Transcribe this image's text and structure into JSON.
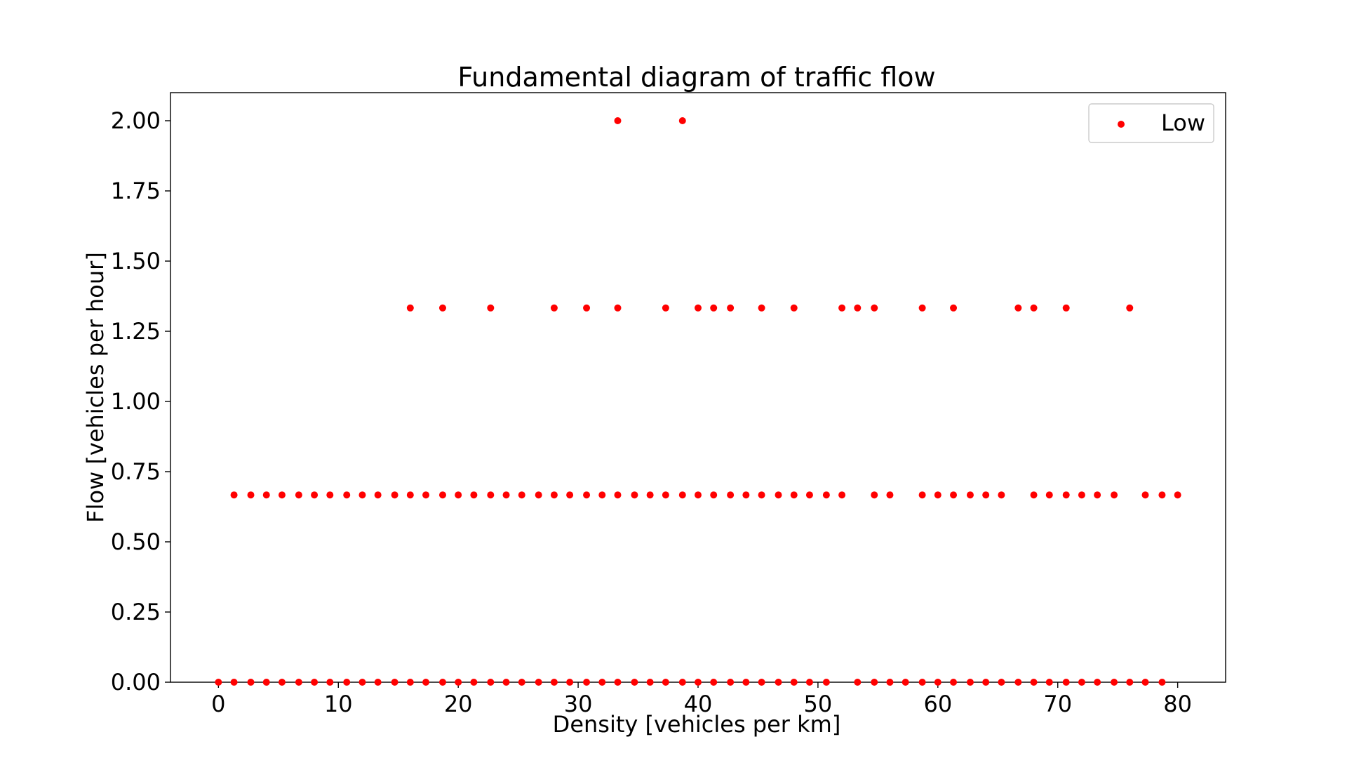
{
  "chart_data": {
    "type": "scatter",
    "title": "Fundamental diagram of traffic flow",
    "xlabel": "Density [vehicles per km]",
    "ylabel": "Flow [vehicles per hour]",
    "xlim": [
      -4,
      84
    ],
    "ylim": [
      0,
      2.1
    ],
    "xticks": [
      0,
      10,
      20,
      30,
      40,
      50,
      60,
      70,
      80
    ],
    "yticks": [
      0.0,
      0.25,
      0.5,
      0.75,
      1.0,
      1.25,
      1.5,
      1.75,
      2.0
    ],
    "xtick_labels": [
      "0",
      "10",
      "20",
      "30",
      "40",
      "50",
      "60",
      "70",
      "80"
    ],
    "ytick_labels": [
      "0.00",
      "0.25",
      "0.50",
      "0.75",
      "1.00",
      "1.25",
      "1.50",
      "1.75",
      "2.00"
    ],
    "grid": false,
    "legend_position": "top-right",
    "series": [
      {
        "name": "Low",
        "color": "#ff0000",
        "points": [
          {
            "x": 0,
            "y": 0
          },
          {
            "x": 1.3,
            "y": 0
          },
          {
            "x": 2.7,
            "y": 0
          },
          {
            "x": 4.0,
            "y": 0
          },
          {
            "x": 5.3,
            "y": 0
          },
          {
            "x": 6.7,
            "y": 0
          },
          {
            "x": 8.0,
            "y": 0
          },
          {
            "x": 9.3,
            "y": 0
          },
          {
            "x": 10.7,
            "y": 0
          },
          {
            "x": 12.0,
            "y": 0
          },
          {
            "x": 13.3,
            "y": 0
          },
          {
            "x": 14.7,
            "y": 0
          },
          {
            "x": 16.0,
            "y": 0
          },
          {
            "x": 17.3,
            "y": 0
          },
          {
            "x": 18.7,
            "y": 0
          },
          {
            "x": 20.0,
            "y": 0
          },
          {
            "x": 21.3,
            "y": 0
          },
          {
            "x": 22.7,
            "y": 0
          },
          {
            "x": 24.0,
            "y": 0
          },
          {
            "x": 25.3,
            "y": 0
          },
          {
            "x": 26.7,
            "y": 0
          },
          {
            "x": 28.0,
            "y": 0
          },
          {
            "x": 29.3,
            "y": 0
          },
          {
            "x": 30.7,
            "y": 0
          },
          {
            "x": 32.0,
            "y": 0
          },
          {
            "x": 33.3,
            "y": 0
          },
          {
            "x": 34.7,
            "y": 0
          },
          {
            "x": 36.0,
            "y": 0
          },
          {
            "x": 37.3,
            "y": 0
          },
          {
            "x": 38.7,
            "y": 0
          },
          {
            "x": 40.0,
            "y": 0
          },
          {
            "x": 41.3,
            "y": 0
          },
          {
            "x": 42.7,
            "y": 0
          },
          {
            "x": 44.0,
            "y": 0
          },
          {
            "x": 45.3,
            "y": 0
          },
          {
            "x": 46.7,
            "y": 0
          },
          {
            "x": 48.0,
            "y": 0
          },
          {
            "x": 49.3,
            "y": 0
          },
          {
            "x": 50.7,
            "y": 0
          },
          {
            "x": 53.3,
            "y": 0
          },
          {
            "x": 54.7,
            "y": 0
          },
          {
            "x": 56.0,
            "y": 0
          },
          {
            "x": 57.3,
            "y": 0
          },
          {
            "x": 58.7,
            "y": 0
          },
          {
            "x": 60.0,
            "y": 0
          },
          {
            "x": 61.3,
            "y": 0
          },
          {
            "x": 62.7,
            "y": 0
          },
          {
            "x": 64.0,
            "y": 0
          },
          {
            "x": 65.3,
            "y": 0
          },
          {
            "x": 66.7,
            "y": 0
          },
          {
            "x": 68.0,
            "y": 0
          },
          {
            "x": 69.3,
            "y": 0
          },
          {
            "x": 70.7,
            "y": 0
          },
          {
            "x": 72.0,
            "y": 0
          },
          {
            "x": 73.3,
            "y": 0
          },
          {
            "x": 74.7,
            "y": 0
          },
          {
            "x": 76.0,
            "y": 0
          },
          {
            "x": 77.3,
            "y": 0
          },
          {
            "x": 78.7,
            "y": 0
          },
          {
            "x": 1.3,
            "y": 0.667
          },
          {
            "x": 2.7,
            "y": 0.667
          },
          {
            "x": 4.0,
            "y": 0.667
          },
          {
            "x": 5.3,
            "y": 0.667
          },
          {
            "x": 6.7,
            "y": 0.667
          },
          {
            "x": 8.0,
            "y": 0.667
          },
          {
            "x": 9.3,
            "y": 0.667
          },
          {
            "x": 10.7,
            "y": 0.667
          },
          {
            "x": 12.0,
            "y": 0.667
          },
          {
            "x": 13.3,
            "y": 0.667
          },
          {
            "x": 14.7,
            "y": 0.667
          },
          {
            "x": 16.0,
            "y": 0.667
          },
          {
            "x": 17.3,
            "y": 0.667
          },
          {
            "x": 18.7,
            "y": 0.667
          },
          {
            "x": 20.0,
            "y": 0.667
          },
          {
            "x": 21.3,
            "y": 0.667
          },
          {
            "x": 22.7,
            "y": 0.667
          },
          {
            "x": 24.0,
            "y": 0.667
          },
          {
            "x": 25.3,
            "y": 0.667
          },
          {
            "x": 26.7,
            "y": 0.667
          },
          {
            "x": 28.0,
            "y": 0.667
          },
          {
            "x": 29.3,
            "y": 0.667
          },
          {
            "x": 30.7,
            "y": 0.667
          },
          {
            "x": 32.0,
            "y": 0.667
          },
          {
            "x": 33.3,
            "y": 0.667
          },
          {
            "x": 34.7,
            "y": 0.667
          },
          {
            "x": 36.0,
            "y": 0.667
          },
          {
            "x": 37.3,
            "y": 0.667
          },
          {
            "x": 38.7,
            "y": 0.667
          },
          {
            "x": 40.0,
            "y": 0.667
          },
          {
            "x": 41.3,
            "y": 0.667
          },
          {
            "x": 42.7,
            "y": 0.667
          },
          {
            "x": 44.0,
            "y": 0.667
          },
          {
            "x": 45.3,
            "y": 0.667
          },
          {
            "x": 46.7,
            "y": 0.667
          },
          {
            "x": 48.0,
            "y": 0.667
          },
          {
            "x": 49.3,
            "y": 0.667
          },
          {
            "x": 50.7,
            "y": 0.667
          },
          {
            "x": 52.0,
            "y": 0.667
          },
          {
            "x": 54.7,
            "y": 0.667
          },
          {
            "x": 56.0,
            "y": 0.667
          },
          {
            "x": 58.7,
            "y": 0.667
          },
          {
            "x": 60.0,
            "y": 0.667
          },
          {
            "x": 61.3,
            "y": 0.667
          },
          {
            "x": 62.7,
            "y": 0.667
          },
          {
            "x": 64.0,
            "y": 0.667
          },
          {
            "x": 65.3,
            "y": 0.667
          },
          {
            "x": 68.0,
            "y": 0.667
          },
          {
            "x": 69.3,
            "y": 0.667
          },
          {
            "x": 70.7,
            "y": 0.667
          },
          {
            "x": 72.0,
            "y": 0.667
          },
          {
            "x": 73.3,
            "y": 0.667
          },
          {
            "x": 74.7,
            "y": 0.667
          },
          {
            "x": 77.3,
            "y": 0.667
          },
          {
            "x": 78.7,
            "y": 0.667
          },
          {
            "x": 80.0,
            "y": 0.667
          },
          {
            "x": 16.0,
            "y": 1.333
          },
          {
            "x": 18.7,
            "y": 1.333
          },
          {
            "x": 22.7,
            "y": 1.333
          },
          {
            "x": 28.0,
            "y": 1.333
          },
          {
            "x": 30.7,
            "y": 1.333
          },
          {
            "x": 33.3,
            "y": 1.333
          },
          {
            "x": 37.3,
            "y": 1.333
          },
          {
            "x": 40.0,
            "y": 1.333
          },
          {
            "x": 41.3,
            "y": 1.333
          },
          {
            "x": 42.7,
            "y": 1.333
          },
          {
            "x": 45.3,
            "y": 1.333
          },
          {
            "x": 48.0,
            "y": 1.333
          },
          {
            "x": 52.0,
            "y": 1.333
          },
          {
            "x": 53.3,
            "y": 1.333
          },
          {
            "x": 54.7,
            "y": 1.333
          },
          {
            "x": 58.7,
            "y": 1.333
          },
          {
            "x": 61.3,
            "y": 1.333
          },
          {
            "x": 66.7,
            "y": 1.333
          },
          {
            "x": 68.0,
            "y": 1.333
          },
          {
            "x": 70.7,
            "y": 1.333
          },
          {
            "x": 76.0,
            "y": 1.333
          },
          {
            "x": 33.3,
            "y": 2.0
          },
          {
            "x": 38.7,
            "y": 2.0
          }
        ]
      }
    ]
  }
}
